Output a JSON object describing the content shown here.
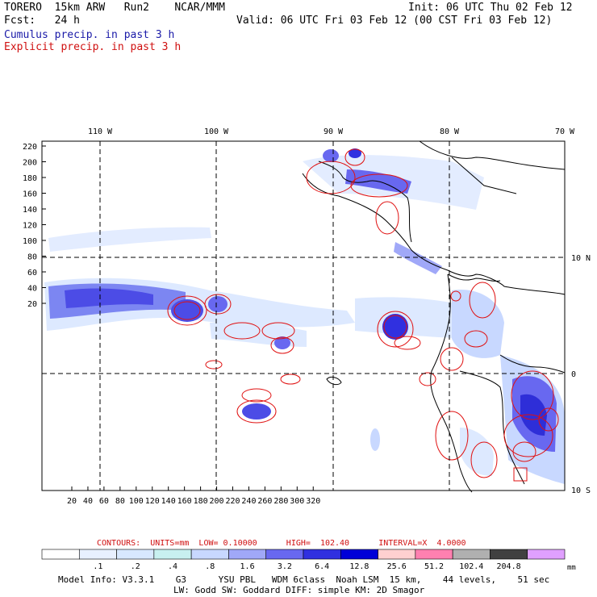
{
  "header": {
    "model_line": "TORERO  15km ARW   Run2    NCAR/MMM",
    "init": "Init: 06 UTC Thu 02 Feb 12",
    "fcst": "Fcst:   24 h",
    "valid": "Valid: 06 UTC Fri 03 Feb 12 (00 CST Fri 03 Feb 12)",
    "cumulus": "Cumulus precip. in past 3 h",
    "explicit": "Explicit precip. in past 3 h"
  },
  "map": {
    "lon_labels": [
      "110 W",
      "100 W",
      "90 W",
      "80 W",
      "70 W"
    ],
    "lat_labels": [
      "10 N",
      "0",
      "10 S"
    ],
    "y_ticks": [
      "220",
      "200",
      "180",
      "160",
      "140",
      "120",
      "100",
      "80",
      "60",
      "40",
      "20"
    ],
    "x_ticks": [
      "20",
      "40",
      "60",
      "80",
      "100",
      "120",
      "140",
      "160",
      "180",
      "200",
      "220",
      "240",
      "260",
      "280",
      "300",
      "320"
    ]
  },
  "contours": {
    "label": "CONTOURS:  UNITS=mm  LOW= 0.10000      HIGH=  102.40      INTERVAL=X  4.0000"
  },
  "colorbar": {
    "labels": [
      ".1",
      ".2",
      ".4",
      ".8",
      "1.6",
      "3.2",
      "6.4",
      "12.8",
      "25.6",
      "51.2",
      "102.4",
      "204.8"
    ],
    "unit": "mm",
    "colors": [
      "#ffffff",
      "#e8f0ff",
      "#d8e8ff",
      "#c8f0f0",
      "#c8d8ff",
      "#a0a8f8",
      "#6868f0",
      "#3030e0",
      "#0000d8",
      "#ffd0d0",
      "#ff80b0",
      "#b0b0b0",
      "#404040",
      "#e0a0ff"
    ]
  },
  "footer": {
    "line1": "Model Info: V3.3.1    G3      YSU PBL   WDM 6class  Noah LSM  15 km,    44 levels,    51 sec",
    "line2": "LW: Godd SW: Goddard DIFF: simple KM: 2D Smagor"
  }
}
